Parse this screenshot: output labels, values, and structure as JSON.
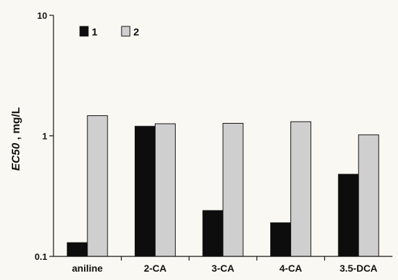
{
  "chart_data": {
    "type": "bar",
    "ylabel_italic": "EC50",
    "ylabel_rest": " , mg/L",
    "yscale": "log",
    "ylim": [
      0.1,
      10
    ],
    "yticks": [
      {
        "value": 0.1,
        "label": "0.1"
      },
      {
        "value": 1,
        "label": "1"
      },
      {
        "value": 10,
        "label": "10"
      }
    ],
    "categories": [
      "aniline",
      "2-CA",
      "3-CA",
      "4-CA",
      "3.5-DCA"
    ],
    "series": [
      {
        "name": "1",
        "color": "#0d0d0d",
        "values": [
          0.13,
          1.2,
          0.24,
          0.19,
          0.48
        ]
      },
      {
        "name": "2",
        "color": "#cfcfcf",
        "values": [
          1.47,
          1.26,
          1.27,
          1.31,
          1.02
        ]
      }
    ],
    "legend_position": "top-left",
    "grid": false
  }
}
